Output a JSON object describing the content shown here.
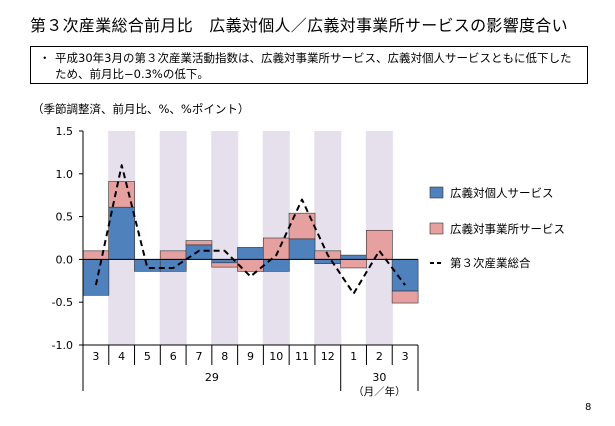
{
  "page": {
    "title": "第３次産業総合前月比　広義対個人／広義対事業所サービスの影響度合い",
    "bullet": "・",
    "note": "平成30年3月の第３次産業活動指数は、広義対事業所サービス、広義対個人サービスともに低下したため、前月比−0.3%の低下。",
    "unit_note": "（季節調整済、前月比、%、%ポイント）",
    "page_number": "8"
  },
  "chart_data": {
    "type": "bar",
    "subtype": "stacked bar with line",
    "categories": [
      "3",
      "4",
      "5",
      "6",
      "7",
      "8",
      "9",
      "10",
      "11",
      "12",
      "1",
      "2",
      "3"
    ],
    "year_labels": [
      "29",
      "30"
    ],
    "xlabel": "（月／年）",
    "ylabel": "（季節調整済、前月比、%、%ポイント）",
    "ylim": [
      -1.0,
      1.5
    ],
    "yticks": [
      "1.5",
      "1.0",
      "0.5",
      "0.0",
      "-0.5",
      "-1.0"
    ],
    "shaded_categories": [
      "4",
      "6",
      "8",
      "10",
      "12",
      "2"
    ],
    "legend_position": "right",
    "series": [
      {
        "name": "広義対個人サービス",
        "kind": "bar",
        "color": "#4F81BD",
        "values": [
          -0.42,
          0.61,
          -0.14,
          -0.14,
          0.17,
          -0.04,
          0.14,
          -0.14,
          0.24,
          -0.05,
          0.05,
          0.0,
          -0.37
        ]
      },
      {
        "name": "広義対事業所サービス",
        "kind": "bar",
        "color": "#E6A0A0",
        "values": [
          0.1,
          0.3,
          0.0,
          0.1,
          0.05,
          -0.05,
          -0.14,
          0.25,
          0.3,
          0.1,
          -0.1,
          0.34,
          -0.14
        ]
      },
      {
        "name": "第３次産業総合",
        "kind": "line",
        "color": "#000000",
        "values": [
          -0.3,
          1.1,
          -0.1,
          -0.1,
          0.1,
          0.1,
          -0.2,
          0.05,
          0.7,
          0.05,
          -0.4,
          0.1,
          -0.3
        ]
      }
    ]
  }
}
